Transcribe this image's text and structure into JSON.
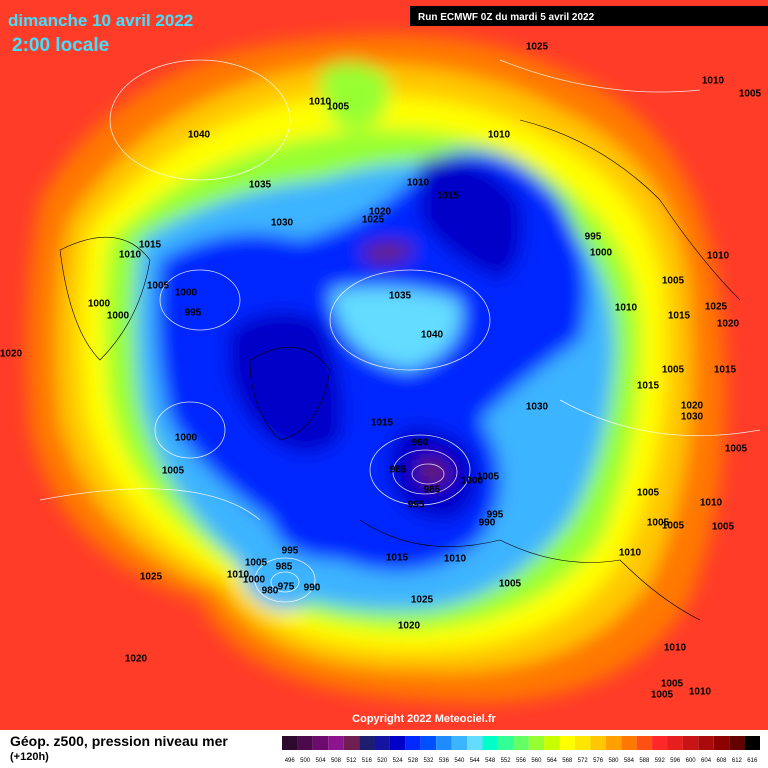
{
  "header": {
    "date": "dimanche 10 avril 2022",
    "time": "2:00 locale",
    "run": "Run ECMWF 0Z du mardi 5 avril 2022"
  },
  "footer": {
    "copyright": "Copyright 2022 Meteociel.fr",
    "title": "Géop. z500, pression niveau mer",
    "lead": "(+120h)"
  },
  "scale": {
    "values": [
      496,
      500,
      504,
      508,
      512,
      516,
      520,
      524,
      528,
      532,
      536,
      540,
      544,
      548,
      552,
      556,
      560,
      564,
      568,
      572,
      576,
      580,
      584,
      588,
      592,
      596,
      600,
      604,
      608,
      612,
      616
    ],
    "colors": [
      "#2d0a2d",
      "#4b0a4b",
      "#6e0a6e",
      "#8c148c",
      "#6e1e50",
      "#1e1e6e",
      "#1414a0",
      "#0000c8",
      "#0028ff",
      "#0050ff",
      "#1e8cff",
      "#3cb4ff",
      "#64dcff",
      "#00ffc8",
      "#32ff96",
      "#64ff64",
      "#96ff32",
      "#c8ff00",
      "#ffff00",
      "#ffe600",
      "#ffc800",
      "#ffa000",
      "#ff7800",
      "#ff5014",
      "#ff2828",
      "#e61e1e",
      "#c81414",
      "#aa0a0a",
      "#8c0000",
      "#640000",
      "#000000"
    ]
  },
  "isobar_labels": [
    "1025",
    "1010",
    "1005",
    "1010",
    "1005",
    "1040",
    "1010",
    "1035",
    "1010",
    "1015",
    "1020",
    "1025",
    "1030",
    "995",
    "1000",
    "1015",
    "1010",
    "1010",
    "1005",
    "1000",
    "1005",
    "1000",
    "1035",
    "995",
    "1000",
    "1010",
    "1025",
    "1015",
    "1020",
    "1040",
    "1020",
    "1005",
    "1015",
    "1015",
    "1030",
    "1020",
    "1030",
    "1015",
    "990",
    "1000",
    "1005",
    "985",
    "1005",
    "1005",
    "985",
    "1000",
    "995",
    "995",
    "990",
    "1005",
    "1010",
    "1005",
    "1005",
    "1005",
    "995",
    "1015",
    "1010",
    "1010",
    "1005",
    "985",
    "1010",
    "1000",
    "975",
    "980",
    "990",
    "1005",
    "1025",
    "1025",
    "1020",
    "1020",
    "1010",
    "1005",
    "1005",
    "1010"
  ]
}
